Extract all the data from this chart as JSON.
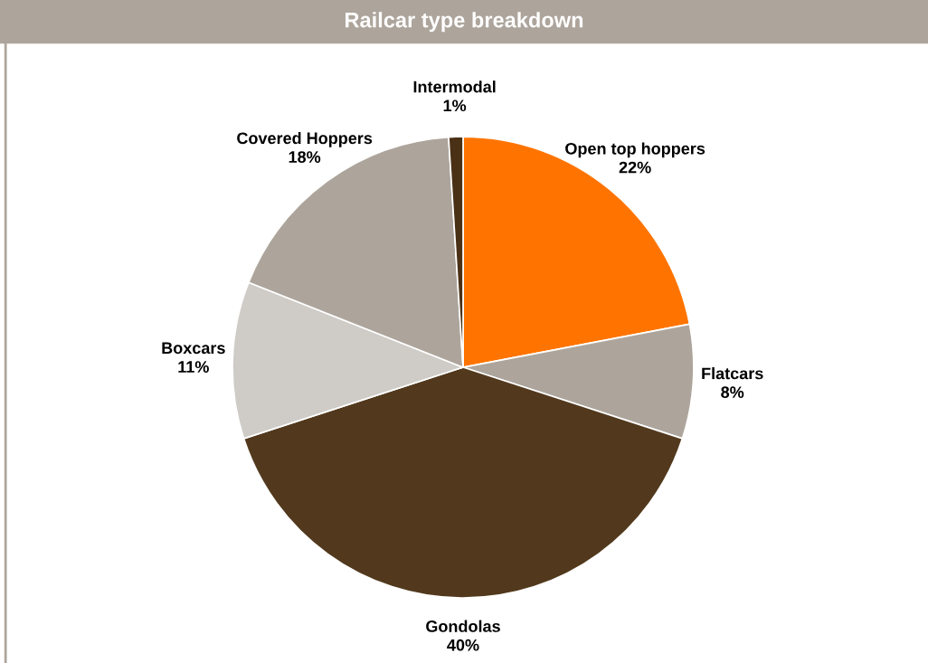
{
  "chart_data": {
    "type": "pie",
    "title": "Railcar type breakdown",
    "categories": [
      "Open top hoppers",
      "Flatcars",
      "Gondolas",
      "Boxcars",
      "Covered Hoppers",
      "Intermodal"
    ],
    "values": [
      22,
      8,
      40,
      11,
      18,
      1
    ],
    "colors": [
      "#ff7400",
      "#ada59c",
      "#52391d",
      "#cfcbc6",
      "#ada59c",
      "#4a3015"
    ],
    "value_labels": [
      "22%",
      "8%",
      "40%",
      "11%",
      "18%",
      "1%"
    ]
  }
}
